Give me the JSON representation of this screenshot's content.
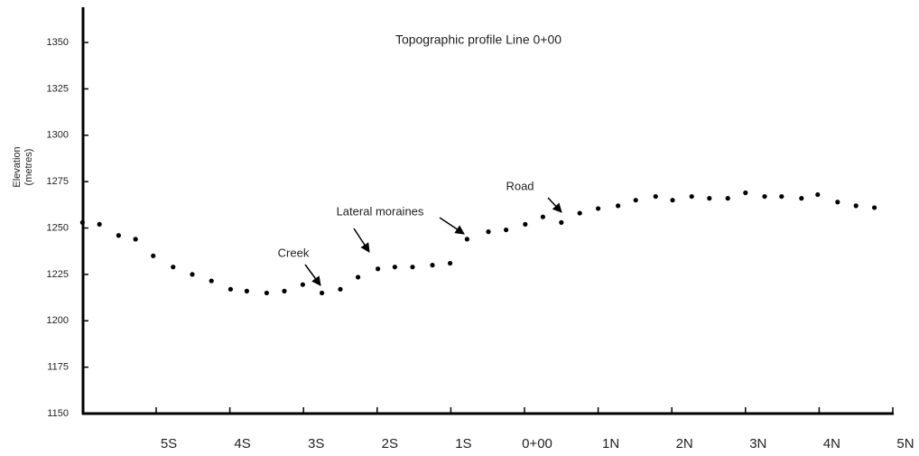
{
  "chart_data": {
    "type": "scatter",
    "title": "Topographic profile Line 0+00",
    "ylabel": [
      "Elevation",
      "(metres)"
    ],
    "color": "#000000",
    "xlim": [
      -6,
      5
    ],
    "ylim": [
      1150,
      1369
    ],
    "xticks": [
      {
        "value": -5,
        "label": "5S"
      },
      {
        "value": -4,
        "label": "4S"
      },
      {
        "value": -3,
        "label": "3S"
      },
      {
        "value": -2,
        "label": "2S"
      },
      {
        "value": -1,
        "label": "1S"
      },
      {
        "value": 0,
        "label": "0+00"
      },
      {
        "value": 1,
        "label": "1N"
      },
      {
        "value": 2,
        "label": "2N"
      },
      {
        "value": 3,
        "label": "3N"
      },
      {
        "value": 4,
        "label": "4N"
      },
      {
        "value": 5,
        "label": "5N"
      }
    ],
    "yticks": [
      1150,
      1175,
      1200,
      1225,
      1250,
      1275,
      1300,
      1325,
      1350
    ],
    "x": [
      -6.0,
      -5.77,
      -5.51,
      -5.28,
      -5.04,
      -4.77,
      -4.51,
      -4.25,
      -3.99,
      -3.77,
      -3.5,
      -3.26,
      -3.01,
      -2.75,
      -2.5,
      -2.26,
      -1.99,
      -1.76,
      -1.52,
      -1.25,
      -1.01,
      -0.78,
      -0.49,
      -0.25,
      0.01,
      0.25,
      0.5,
      0.75,
      1.0,
      1.27,
      1.51,
      1.78,
      2.01,
      2.27,
      2.51,
      2.76,
      3.0,
      3.26,
      3.49,
      3.76,
      3.98,
      4.25,
      4.5,
      4.75
    ],
    "values": [
      1253,
      1252,
      1246,
      1244,
      1235,
      1229,
      1225,
      1221.5,
      1217,
      1216,
      1215,
      1216,
      1219.5,
      1215,
      1217,
      1223.5,
      1228,
      1229,
      1229,
      1230,
      1231,
      1244,
      1248,
      1249,
      1252,
      1256,
      1253,
      1258,
      1260.5,
      1262,
      1265,
      1267,
      1265,
      1267,
      1266,
      1266,
      1269,
      1267,
      1267,
      1266,
      1268,
      1264,
      1262,
      1261
    ],
    "annotations": [
      "Creek",
      "Lateral moraines",
      "Road"
    ]
  }
}
